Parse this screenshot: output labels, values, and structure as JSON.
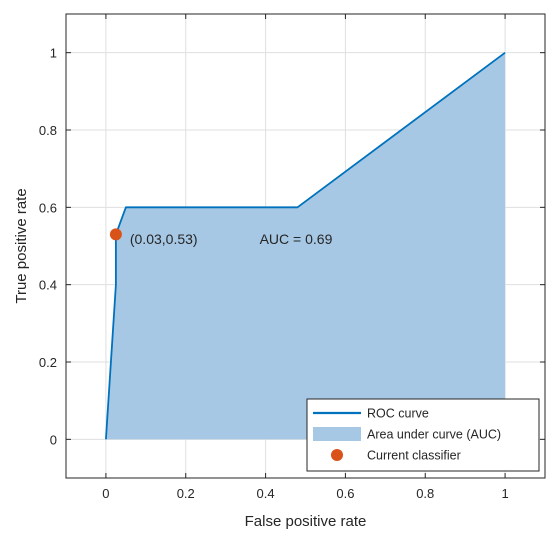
{
  "chart_data": {
    "type": "area",
    "xlabel": "False positive rate",
    "ylabel": "True positive rate",
    "xlim": [
      -0.1,
      1.1
    ],
    "ylim": [
      -0.1,
      1.1
    ],
    "xticks": [
      0,
      0.2,
      0.4,
      0.6,
      0.8,
      1
    ],
    "yticks": [
      0,
      0.2,
      0.4,
      0.6,
      0.8,
      1
    ],
    "xtick_labels": [
      "0",
      "0.2",
      "0.4",
      "0.6",
      "0.8",
      "1"
    ],
    "ytick_labels": [
      "0",
      "0.2",
      "0.4",
      "0.6",
      "0.8",
      "1"
    ],
    "grid": true,
    "legend_position": "bottom-right",
    "series": [
      {
        "name": "ROC curve",
        "kind": "line",
        "color": "#0072bd",
        "x": [
          0,
          0.025,
          0.025,
          0.05,
          0.48,
          1.0
        ],
        "y": [
          0,
          0.4,
          0.53,
          0.6,
          0.6,
          1.0
        ]
      },
      {
        "name": "Area under curve (AUC)",
        "kind": "area",
        "color": "#a6c8e4"
      },
      {
        "name": "Current classifier",
        "kind": "point",
        "color": "#d95319",
        "x": [
          0.025
        ],
        "y": [
          0.53
        ]
      }
    ],
    "annotations": [
      {
        "text": "(0.03,0.53)",
        "x": 0.06,
        "y": 0.505
      },
      {
        "text": "AUC = 0.69",
        "x": 0.385,
        "y": 0.505
      }
    ]
  }
}
